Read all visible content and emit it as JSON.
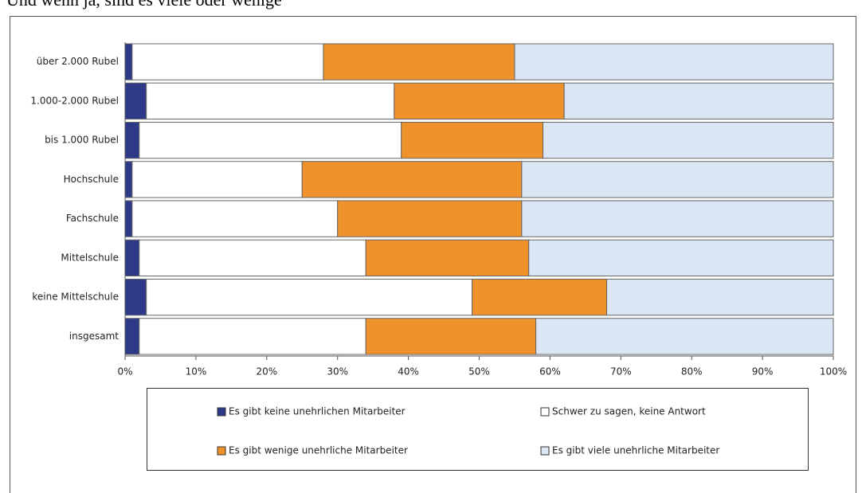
{
  "chart_data": {
    "type": "stacked_barh",
    "title": "Und wenn ja, sind es viele oder wenige",
    "categories": [
      "über 2.000 Rubel",
      "1.000-2.000 Rubel",
      "bis 1.000 Rubel",
      "Hochschule",
      "Fachschule",
      "Mittelschule",
      "keine Mittelschule",
      "insgesamt"
    ],
    "series": [
      {
        "name": "Es gibt keine unehrlichen Mitarbeiter",
        "color": "#2e3a87",
        "values": [
          1,
          3,
          2,
          1,
          1,
          2,
          3,
          2
        ]
      },
      {
        "name": "Schwer zu sagen, keine Antwort",
        "color": "#ffffff",
        "values": [
          27,
          35,
          37,
          24,
          29,
          32,
          46,
          32
        ]
      },
      {
        "name": "Es gibt wenige unehrliche Mitarbeiter",
        "color": "#f0922b",
        "values": [
          27,
          24,
          20,
          31,
          26,
          23,
          19,
          24
        ]
      },
      {
        "name": "Es gibt viele unehrliche Mitarbeiter",
        "color": "#dae6f4",
        "values": [
          45,
          38,
          41,
          44,
          44,
          43,
          32,
          42
        ]
      }
    ],
    "xlim": [
      0,
      100
    ],
    "xticks": [
      {
        "value": 0,
        "label": "0%"
      },
      {
        "value": 10,
        "label": "10%"
      },
      {
        "value": 20,
        "label": "20%"
      },
      {
        "value": 30,
        "label": "30%"
      },
      {
        "value": 40,
        "label": "40%"
      },
      {
        "value": 50,
        "label": "50%"
      },
      {
        "value": 60,
        "label": "60%"
      },
      {
        "value": 70,
        "label": "70%"
      },
      {
        "value": 80,
        "label": "80%"
      },
      {
        "value": 90,
        "label": "90%"
      },
      {
        "value": 100,
        "label": "100%"
      }
    ]
  }
}
